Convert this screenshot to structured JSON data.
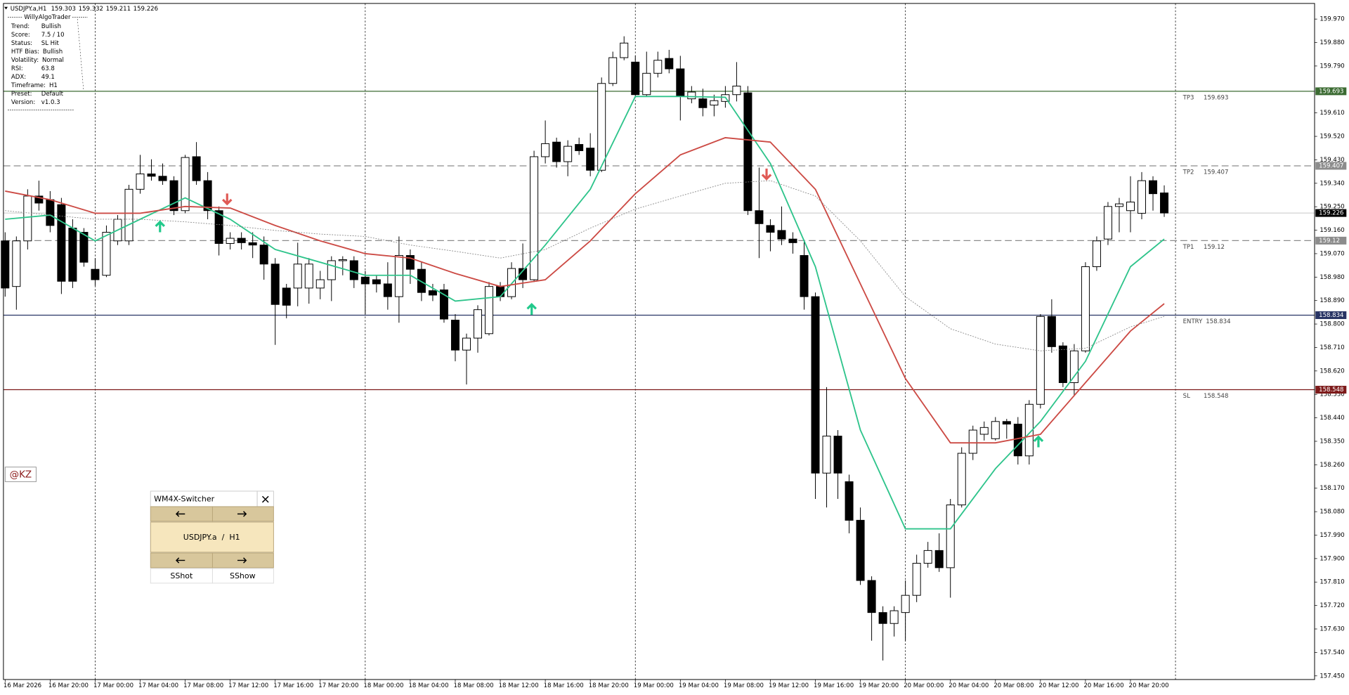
{
  "chart_data": {
    "type": "candlestick",
    "symbol": "USDJPY.a,H1",
    "xlim": [
      -0.15,
      116.36
    ],
    "xticks": [
      {
        "value": 0,
        "label": "16 Mar 2026"
      },
      {
        "value": 4,
        "label": "16 Mar 20:00"
      },
      {
        "value": 8,
        "label": "17 Mar 00:00"
      },
      {
        "value": 12,
        "label": "17 Mar 04:00"
      },
      {
        "value": 16,
        "label": "17 Mar 08:00"
      },
      {
        "value": 20,
        "label": "17 Mar 12:00"
      },
      {
        "value": 24,
        "label": "17 Mar 16:00"
      },
      {
        "value": 28,
        "label": "17 Mar 20:00"
      },
      {
        "value": 32,
        "label": "18 Mar 00:00"
      },
      {
        "value": 36,
        "label": "18 Mar 04:00"
      },
      {
        "value": 40,
        "label": "18 Mar 08:00"
      },
      {
        "value": 44,
        "label": "18 Mar 12:00"
      },
      {
        "value": 48,
        "label": "18 Mar 16:00"
      },
      {
        "value": 52,
        "label": "18 Mar 20:00"
      },
      {
        "value": 56,
        "label": "19 Mar 00:00"
      },
      {
        "value": 60,
        "label": "19 Mar 04:00"
      },
      {
        "value": 64,
        "label": "19 Mar 08:00"
      },
      {
        "value": 68,
        "label": "19 Mar 12:00"
      },
      {
        "value": 72,
        "label": "19 Mar 16:00"
      },
      {
        "value": 76,
        "label": "19 Mar 20:00"
      },
      {
        "value": 80,
        "label": "20 Mar 00:00"
      },
      {
        "value": 84,
        "label": "20 Mar 04:00"
      },
      {
        "value": 88,
        "label": "20 Mar 08:00"
      },
      {
        "value": 92,
        "label": "20 Mar 12:00"
      },
      {
        "value": 96,
        "label": "20 Mar 16:00"
      },
      {
        "value": 100,
        "label": "20 Mar 20:00"
      }
    ],
    "period_separators": [
      8,
      32,
      56,
      80,
      104
    ],
    "ylim": [
      157.436,
      160.03
    ],
    "yticks": [
      {
        "value": 159.97,
        "label": "159.970"
      },
      {
        "value": 159.88,
        "label": "159.880"
      },
      {
        "value": 159.79,
        "label": "159.790"
      },
      {
        "value": 159.61,
        "label": "159.610"
      },
      {
        "value": 159.52,
        "label": "159.520"
      },
      {
        "value": 159.43,
        "label": "159.430"
      },
      {
        "value": 159.34,
        "label": "159.340"
      },
      {
        "value": 159.25,
        "label": "159.250"
      },
      {
        "value": 159.16,
        "label": "159.160"
      },
      {
        "value": 159.07,
        "label": "159.070"
      },
      {
        "value": 158.98,
        "label": "158.980"
      },
      {
        "value": 158.89,
        "label": "158.890"
      },
      {
        "value": 158.8,
        "label": "158.800"
      },
      {
        "value": 158.71,
        "label": "158.710"
      },
      {
        "value": 158.62,
        "label": "158.620"
      },
      {
        "value": 158.53,
        "label": "158.530"
      },
      {
        "value": 158.44,
        "label": "158.440"
      },
      {
        "value": 158.35,
        "label": "158.350"
      },
      {
        "value": 158.26,
        "label": "158.260"
      },
      {
        "value": 158.17,
        "label": "158.170"
      },
      {
        "value": 158.08,
        "label": "158.080"
      },
      {
        "value": 157.99,
        "label": "157.990"
      },
      {
        "value": 157.9,
        "label": "157.900"
      },
      {
        "value": 157.81,
        "label": "157.810"
      },
      {
        "value": 157.72,
        "label": "157.720"
      },
      {
        "value": 157.63,
        "label": "157.630"
      },
      {
        "value": 157.54,
        "label": "157.540"
      },
      {
        "value": 157.45,
        "label": "157.450"
      }
    ],
    "up_color": "#ffffff",
    "down_color": "#000000",
    "open": [
      159.119,
      158.944,
      159.119,
      159.291,
      159.277,
      159.258,
      159.168,
      159.152,
      159.01,
      158.987,
      159.119,
      159.119,
      159.317,
      159.376,
      159.367,
      159.35,
      159.235,
      159.442,
      159.35,
      159.235,
      159.109,
      159.129,
      159.112,
      159.103,
      159.03,
      158.938,
      158.938,
      158.938,
      158.938,
      158.97,
      159.043,
      159.043,
      158.98,
      158.97,
      158.954,
      158.905,
      159.063,
      159.01,
      158.928,
      158.931,
      158.815,
      158.7,
      158.746,
      158.763,
      158.944,
      158.905,
      159.013,
      158.97,
      159.442,
      159.498,
      159.423,
      159.489,
      159.475,
      159.39,
      159.723,
      159.822,
      159.805,
      159.68,
      159.762,
      159.819,
      159.779,
      159.664,
      159.664,
      159.64,
      159.654,
      159.68,
      159.687,
      159.235,
      159.178,
      159.159,
      159.126,
      159.063,
      158.905,
      158.228,
      158.37,
      158.195,
      158.047,
      157.816,
      157.693,
      157.651,
      157.693,
      157.759,
      157.882,
      157.931,
      157.865,
      158.106,
      158.304,
      158.377,
      158.36,
      158.426,
      158.416,
      158.294,
      158.492,
      158.829,
      158.716,
      158.575,
      158.697,
      159.02,
      159.126,
      159.251,
      159.235,
      159.225,
      159.35,
      159.303
    ],
    "high": [
      159.152,
      159.136,
      159.317,
      159.35,
      159.31,
      159.284,
      159.202,
      159.168,
      159.053,
      159.178,
      159.218,
      159.334,
      159.449,
      159.432,
      159.416,
      159.367,
      159.449,
      159.498,
      159.383,
      159.251,
      159.152,
      159.152,
      159.152,
      159.136,
      159.053,
      158.954,
      159.112,
      159.053,
      159.004,
      159.06,
      159.06,
      159.06,
      159.004,
      158.987,
      159.037,
      159.136,
      159.086,
      159.037,
      158.954,
      158.954,
      158.838,
      158.763,
      158.872,
      158.961,
      158.961,
      159.037,
      159.109,
      159.465,
      159.581,
      159.515,
      159.505,
      159.515,
      159.532,
      159.746,
      159.845,
      159.904,
      159.829,
      159.845,
      159.845,
      159.852,
      159.829,
      159.713,
      159.703,
      159.68,
      159.713,
      159.805,
      159.713,
      159.4,
      159.202,
      159.251,
      159.152,
      159.119,
      158.921,
      158.558,
      158.393,
      158.222,
      158.096,
      157.832,
      157.717,
      157.717,
      157.816,
      157.915,
      157.964,
      157.997,
      158.129,
      158.327,
      158.41,
      158.426,
      158.443,
      158.436,
      158.443,
      158.508,
      158.838,
      158.895,
      158.73,
      158.723,
      159.037,
      159.136,
      159.268,
      159.284,
      159.367,
      159.383,
      159.367,
      159.332
    ],
    "low": [
      158.905,
      158.855,
      159.086,
      159.235,
      159.152,
      158.915,
      158.938,
      159.02,
      158.947,
      158.98,
      159.103,
      159.103,
      159.3,
      159.35,
      159.334,
      159.218,
      159.225,
      159.334,
      159.202,
      159.063,
      159.086,
      159.086,
      159.053,
      158.97,
      158.72,
      158.822,
      158.868,
      158.878,
      158.895,
      158.888,
      158.987,
      158.938,
      158.838,
      158.921,
      158.855,
      158.805,
      158.954,
      158.888,
      158.888,
      158.805,
      158.657,
      158.568,
      158.69,
      158.756,
      158.888,
      158.895,
      158.938,
      158.961,
      159.416,
      159.4,
      159.367,
      159.449,
      159.367,
      159.383,
      159.713,
      159.812,
      159.673,
      159.673,
      159.746,
      159.762,
      159.581,
      159.647,
      159.597,
      159.597,
      159.63,
      159.654,
      159.218,
      159.053,
      159.079,
      159.103,
      159.07,
      158.855,
      158.129,
      158.096,
      158.129,
      157.997,
      157.799,
      157.585,
      157.509,
      157.601,
      157.585,
      157.733,
      157.865,
      157.849,
      157.75,
      158.096,
      158.278,
      158.353,
      158.353,
      158.36,
      158.261,
      158.261,
      158.476,
      158.69,
      158.558,
      158.525,
      158.69,
      159.004,
      159.103,
      159.152,
      159.152,
      159.202,
      159.235,
      159.211
    ],
    "close": [
      158.938,
      159.119,
      159.291,
      159.264,
      159.178,
      158.964,
      158.964,
      159.037,
      158.97,
      159.152,
      159.202,
      159.317,
      159.376,
      159.367,
      159.35,
      159.235,
      159.439,
      159.35,
      159.235,
      159.109,
      159.129,
      159.112,
      159.103,
      159.03,
      158.875,
      158.872,
      159.03,
      159.03,
      158.97,
      159.043,
      159.047,
      158.97,
      158.954,
      158.954,
      158.905,
      159.063,
      159.01,
      158.921,
      158.911,
      158.819,
      158.7,
      158.746,
      158.855,
      158.944,
      158.905,
      159.013,
      158.97,
      159.442,
      159.492,
      159.423,
      159.482,
      159.465,
      159.39,
      159.723,
      159.822,
      159.878,
      159.68,
      159.762,
      159.812,
      159.779,
      159.673,
      159.69,
      159.63,
      159.657,
      159.68,
      159.713,
      159.235,
      159.185,
      159.152,
      159.126,
      159.112,
      158.905,
      158.228,
      158.37,
      158.228,
      158.047,
      157.816,
      157.693,
      157.651,
      157.7,
      157.759,
      157.882,
      157.931,
      157.865,
      158.106,
      158.304,
      158.393,
      158.403,
      158.426,
      158.416,
      158.294,
      158.492,
      158.829,
      158.713,
      158.575,
      158.697,
      159.02,
      159.119,
      159.251,
      159.261,
      159.268,
      159.35,
      159.3,
      159.226
    ],
    "lines": [
      {
        "color": "#2ec48b",
        "style": "solid",
        "x": [
          0,
          4,
          8,
          12,
          16,
          20,
          24,
          28,
          32,
          36,
          40,
          44,
          48,
          52,
          56,
          60,
          64,
          68,
          72,
          76,
          80,
          84,
          88,
          92,
          96,
          100,
          103
        ],
        "values": [
          159.202,
          159.218,
          159.119,
          159.202,
          159.284,
          159.202,
          159.086,
          159.037,
          158.987,
          158.987,
          158.888,
          158.905,
          159.103,
          159.317,
          159.673,
          159.673,
          159.67,
          159.416,
          159.02,
          158.393,
          158.014,
          158.014,
          158.245,
          158.426,
          158.657,
          159.02,
          159.126
        ]
      },
      {
        "color": "#cc4a44",
        "style": "solid",
        "x": [
          0,
          4,
          8,
          12,
          16,
          20,
          24,
          28,
          32,
          36,
          40,
          44,
          48,
          52,
          56,
          60,
          64,
          68,
          72,
          76,
          80,
          84,
          88,
          92,
          96,
          100,
          103
        ],
        "values": [
          159.31,
          159.277,
          159.225,
          159.225,
          159.251,
          159.245,
          159.178,
          159.119,
          159.07,
          159.053,
          158.994,
          158.944,
          158.97,
          159.119,
          159.3,
          159.449,
          159.515,
          159.498,
          159.317,
          158.954,
          158.591,
          158.344,
          158.344,
          158.377,
          158.575,
          158.773,
          158.878
        ]
      },
      {
        "color": "#808080",
        "style": "dotted",
        "x": [
          0,
          4,
          8,
          12,
          16,
          20,
          24,
          28,
          32,
          36,
          40,
          44,
          48,
          52,
          56,
          60,
          64,
          68,
          72,
          76,
          80,
          84,
          88,
          92,
          96,
          100,
          103
        ],
        "values": [
          159.235,
          159.218,
          159.202,
          159.202,
          159.192,
          159.178,
          159.159,
          159.145,
          159.136,
          159.103,
          159.079,
          159.053,
          159.086,
          159.168,
          159.241,
          159.291,
          159.34,
          159.35,
          159.291,
          159.119,
          158.905,
          158.782,
          158.723,
          158.697,
          158.707,
          158.789,
          158.829
        ]
      }
    ],
    "levels": [
      {
        "label": "TP3",
        "value": 159.693,
        "color": "#3b6b32",
        "style": "solid"
      },
      {
        "label": "TP2",
        "value": 159.407,
        "color": "#8c8c8c",
        "style": "dashed"
      },
      {
        "label": "TP1",
        "value": 159.12,
        "color": "#8c8c8c",
        "style": "dashed"
      },
      {
        "label": "ENTRY",
        "value": 158.834,
        "color": "#283464",
        "style": "solid"
      },
      {
        "label": "SL",
        "value": 158.548,
        "color": "#7d1a1a",
        "style": "solid"
      }
    ]
  },
  "info_panel": {
    "title": "WillyAlgoTrader",
    "rows": [
      [
        "Trend:",
        "Bullish"
      ],
      [
        "Score:",
        "7.5 / 10"
      ],
      [
        "Status:",
        "SL Hit"
      ],
      [
        "HTF Bias:",
        "Bullish"
      ],
      [
        "Volatility:",
        "Normal"
      ],
      [
        "RSI:",
        "63.8"
      ],
      [
        "ADX:",
        "49.1"
      ],
      [
        "Timeframe:",
        "H1"
      ],
      [
        "Preset:",
        "Default"
      ],
      [
        "Version:",
        "v1.0.3"
      ]
    ]
  },
  "tag": "@KZ",
  "switcher": {
    "title": "WM4X-Switcher",
    "symbol_button": "USDJPY.a  /  H1",
    "buttons": [
      "SShot",
      "SShow"
    ]
  }
}
